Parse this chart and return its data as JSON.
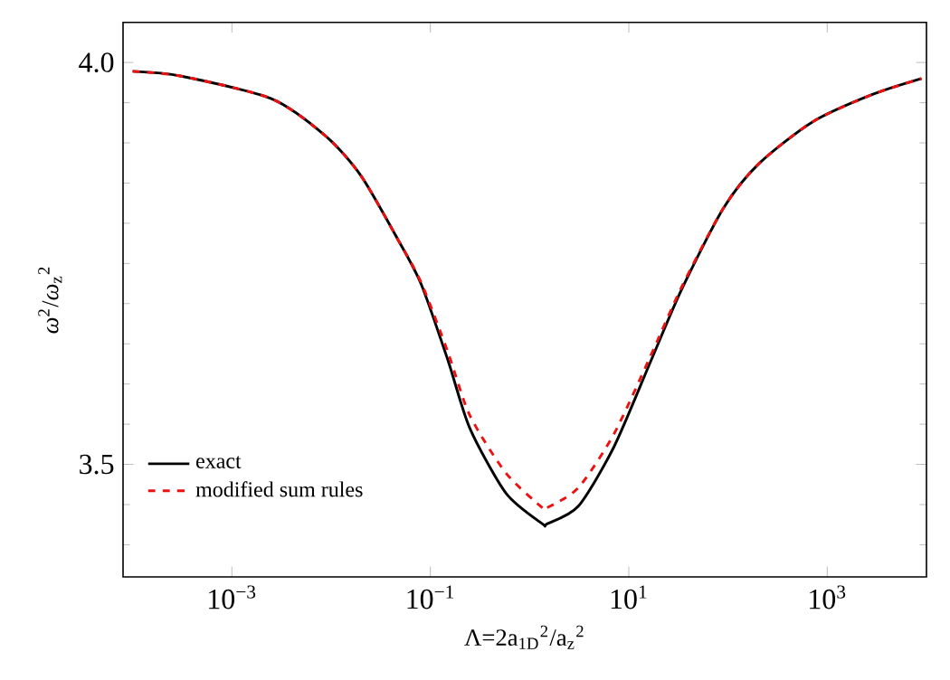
{
  "chart_data": {
    "type": "line",
    "xlabel": "Λ=2a$_{1D}$$^{2}$/a$_{z}$$^{2}$",
    "ylabel": "*ω*$^{2}$/*ω*$_{z}$$^{2}$",
    "log": "x",
    "xlim": [
      8e-05,
      10000
    ],
    "ylim": [
      3.36,
      4.05
    ],
    "xticks": [
      {
        "value": 0.001,
        "label": "10$^{−3}$"
      },
      {
        "value": 0.1,
        "label": "10$^{−1}$"
      },
      {
        "value": 10,
        "label": "10$^{1}$"
      },
      {
        "value": 1000,
        "label": "10$^{3}$"
      }
    ],
    "yticks": [
      {
        "value": 3.5,
        "label": "3.5"
      },
      {
        "value": 4,
        "label": "4.0"
      }
    ],
    "legend": "bottom left",
    "grid": false,
    "series": [
      {
        "name": "exact",
        "color": "#000000",
        "line_style": "solid",
        "x": [
          0.0001,
          0.00031,
          0.0025,
          0.0089,
          0.02,
          0.047,
          0.081,
          0.15,
          0.25,
          0.58,
          1.35,
          1.5,
          3.1,
          7.1,
          16.6,
          33.9,
          89,
          204,
          708,
          2818,
          8913
        ],
        "values": [
          3.989,
          3.983,
          3.955,
          3.908,
          3.859,
          3.78,
          3.724,
          3.63,
          3.545,
          3.464,
          3.426,
          3.426,
          3.448,
          3.522,
          3.628,
          3.717,
          3.818,
          3.874,
          3.926,
          3.96,
          3.98
        ]
      },
      {
        "name": "modified sum rules",
        "color": "#ee1111",
        "line_style": "dashed",
        "x": [
          0.0001,
          0.00031,
          0.0025,
          0.0089,
          0.02,
          0.047,
          0.081,
          0.15,
          0.25,
          0.58,
          1.35,
          1.5,
          3.1,
          7.1,
          16.6,
          33.9,
          89,
          204,
          708,
          2818,
          8913
        ],
        "values": [
          3.989,
          3.983,
          3.955,
          3.908,
          3.859,
          3.78,
          3.726,
          3.64,
          3.561,
          3.489,
          3.446,
          3.446,
          3.471,
          3.538,
          3.635,
          3.72,
          3.818,
          3.874,
          3.926,
          3.96,
          3.98
        ]
      }
    ]
  }
}
